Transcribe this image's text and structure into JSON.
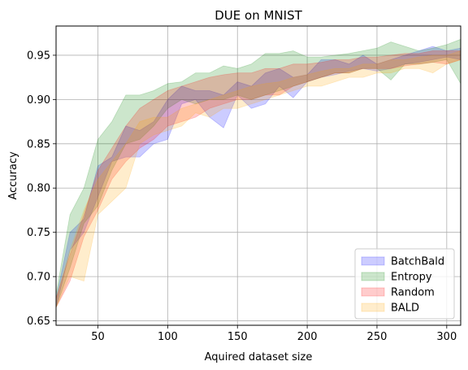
{
  "chart_data": {
    "type": "area",
    "title": "DUE on MNIST",
    "xlabel": "Aquired dataset size",
    "ylabel": "Accuracy",
    "xlim": [
      20,
      310
    ],
    "ylim": [
      0.645,
      0.983
    ],
    "xticks": [
      50,
      100,
      150,
      200,
      250,
      300
    ],
    "yticks": [
      0.65,
      0.7,
      0.75,
      0.8,
      0.85,
      0.9,
      0.95
    ],
    "ytick_labels": [
      "0.65",
      "0.70",
      "0.75",
      "0.80",
      "0.85",
      "0.90",
      "0.95"
    ],
    "grid": true,
    "legend_position": "lower-right",
    "x": [
      20,
      30,
      40,
      50,
      60,
      70,
      80,
      90,
      100,
      110,
      120,
      130,
      140,
      150,
      160,
      170,
      180,
      190,
      200,
      210,
      220,
      230,
      240,
      250,
      260,
      270,
      280,
      290,
      300,
      310
    ],
    "series": [
      {
        "name": "BatchBald",
        "color": "#0000ff",
        "alpha": 0.2,
        "lower": [
          0.665,
          0.73,
          0.75,
          0.79,
          0.83,
          0.835,
          0.835,
          0.85,
          0.855,
          0.895,
          0.9,
          0.88,
          0.868,
          0.905,
          0.89,
          0.895,
          0.915,
          0.902,
          0.92,
          0.925,
          0.928,
          0.932,
          0.935,
          0.932,
          0.935,
          0.94,
          0.942,
          0.945,
          0.948,
          0.945
        ],
        "upper": [
          0.675,
          0.75,
          0.765,
          0.825,
          0.835,
          0.87,
          0.865,
          0.875,
          0.9,
          0.915,
          0.91,
          0.91,
          0.905,
          0.92,
          0.915,
          0.93,
          0.935,
          0.925,
          0.928,
          0.945,
          0.945,
          0.94,
          0.95,
          0.94,
          0.945,
          0.95,
          0.955,
          0.96,
          0.955,
          0.958
        ]
      },
      {
        "name": "Entropy",
        "color": "#008000",
        "alpha": 0.2,
        "lower": [
          0.665,
          0.71,
          0.76,
          0.78,
          0.82,
          0.85,
          0.855,
          0.87,
          0.89,
          0.9,
          0.895,
          0.9,
          0.9,
          0.905,
          0.9,
          0.905,
          0.91,
          0.915,
          0.92,
          0.925,
          0.93,
          0.93,
          0.935,
          0.935,
          0.922,
          0.94,
          0.94,
          0.942,
          0.945,
          0.918
        ],
        "upper": [
          0.68,
          0.77,
          0.8,
          0.855,
          0.875,
          0.905,
          0.905,
          0.91,
          0.918,
          0.92,
          0.93,
          0.93,
          0.938,
          0.935,
          0.94,
          0.952,
          0.952,
          0.955,
          0.948,
          0.948,
          0.95,
          0.952,
          0.955,
          0.958,
          0.965,
          0.96,
          0.955,
          0.958,
          0.962,
          0.968
        ]
      },
      {
        "name": "Random",
        "color": "#ff0000",
        "alpha": 0.2,
        "lower": [
          0.665,
          0.695,
          0.745,
          0.775,
          0.81,
          0.83,
          0.845,
          0.855,
          0.87,
          0.875,
          0.88,
          0.89,
          0.895,
          0.9,
          0.9,
          0.905,
          0.905,
          0.915,
          0.92,
          0.925,
          0.93,
          0.93,
          0.935,
          0.935,
          0.935,
          0.938,
          0.94,
          0.942,
          0.94,
          0.945
        ],
        "upper": [
          0.675,
          0.725,
          0.77,
          0.82,
          0.845,
          0.87,
          0.89,
          0.9,
          0.91,
          0.915,
          0.92,
          0.925,
          0.928,
          0.93,
          0.93,
          0.935,
          0.935,
          0.94,
          0.94,
          0.942,
          0.945,
          0.945,
          0.948,
          0.948,
          0.95,
          0.952,
          0.952,
          0.955,
          0.955,
          0.955
        ]
      },
      {
        "name": "BALD",
        "color": "#ffa500",
        "alpha": 0.2,
        "lower": [
          0.665,
          0.7,
          0.695,
          0.77,
          0.785,
          0.8,
          0.85,
          0.86,
          0.865,
          0.87,
          0.885,
          0.88,
          0.89,
          0.89,
          0.895,
          0.9,
          0.905,
          0.91,
          0.915,
          0.915,
          0.92,
          0.925,
          0.925,
          0.93,
          0.93,
          0.935,
          0.935,
          0.93,
          0.94,
          0.945
        ],
        "upper": [
          0.675,
          0.73,
          0.775,
          0.81,
          0.83,
          0.85,
          0.875,
          0.88,
          0.88,
          0.89,
          0.895,
          0.9,
          0.905,
          0.91,
          0.915,
          0.918,
          0.92,
          0.925,
          0.928,
          0.932,
          0.935,
          0.935,
          0.94,
          0.94,
          0.945,
          0.945,
          0.948,
          0.95,
          0.95,
          0.955
        ]
      }
    ]
  }
}
